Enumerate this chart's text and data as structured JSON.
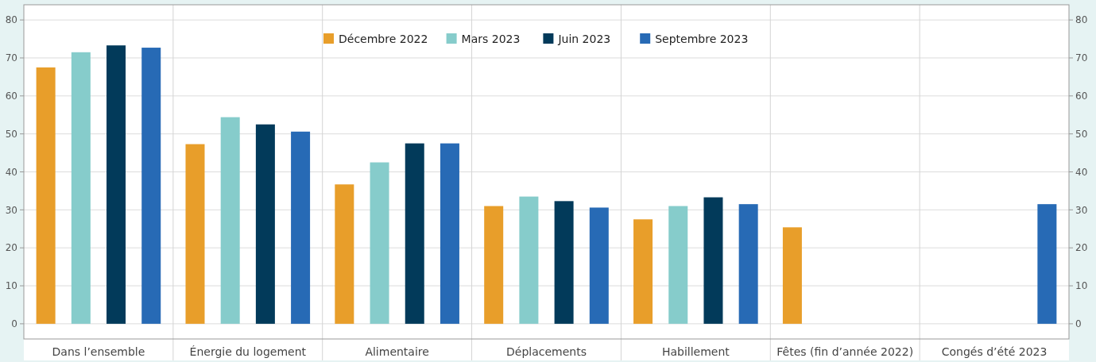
{
  "chart_data": {
    "type": "bar",
    "categories": [
      "Dans l’ensemble",
      "Énergie du logement",
      "Alimentaire",
      "Déplacements",
      "Habillement",
      "Fêtes (fin d’année 2022)",
      "Congés d’été 2023"
    ],
    "series": [
      {
        "name": "Décembre 2022",
        "color": "#e89e2a",
        "values": [
          67.5,
          47.3,
          36.7,
          31.0,
          27.5,
          25.4,
          null
        ]
      },
      {
        "name": "Mars 2023",
        "color": "#86cccb",
        "values": [
          71.5,
          54.4,
          42.5,
          33.5,
          31.0,
          null,
          null
        ]
      },
      {
        "name": "Juin 2023",
        "color": "#023a5a",
        "values": [
          73.3,
          52.5,
          47.5,
          32.3,
          33.3,
          null,
          null
        ]
      },
      {
        "name": "Septembre 2023",
        "color": "#276ab5",
        "values": [
          72.7,
          50.6,
          47.5,
          30.6,
          31.5,
          null,
          31.5
        ]
      }
    ],
    "ylim": [
      -4,
      84
    ],
    "yticks": [
      0,
      10,
      20,
      30,
      40,
      50,
      60,
      70,
      80
    ],
    "y2lim": [
      -4,
      84
    ],
    "y2ticks": [
      0,
      10,
      20,
      30,
      40,
      50,
      60,
      70,
      80
    ],
    "grid": true,
    "legend": "top"
  }
}
